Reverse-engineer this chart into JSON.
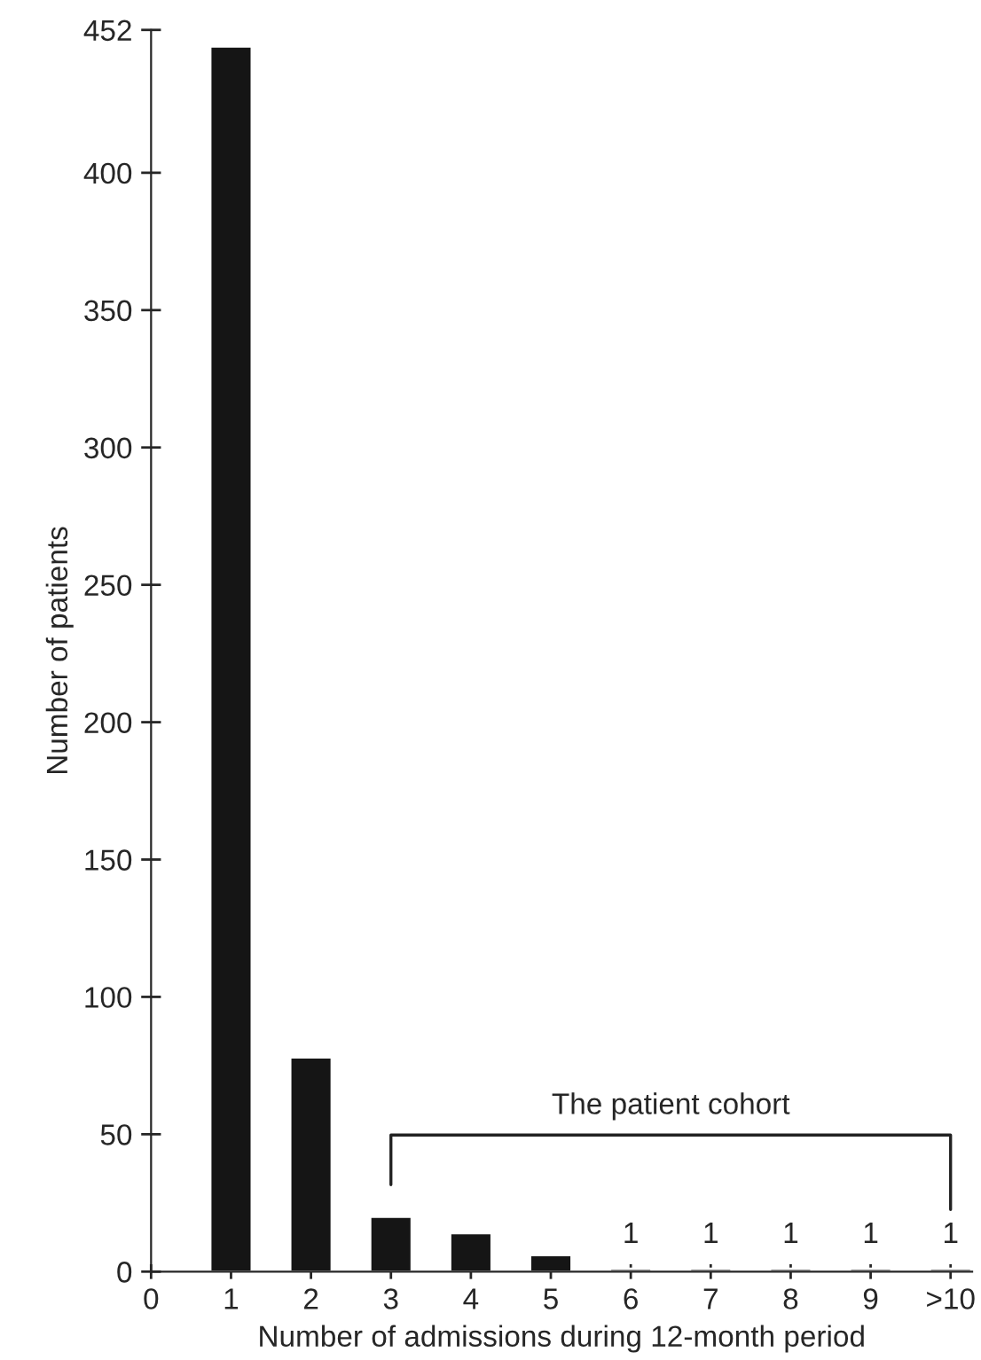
{
  "chart_data": {
    "type": "bar",
    "xlabel": "Number of admissions during 12-month period",
    "ylabel": "Number of patients",
    "x": [
      1,
      2,
      3,
      4,
      5,
      6,
      7,
      8,
      9,
      10
    ],
    "values": [
      446,
      78,
      20,
      14,
      6,
      1,
      1,
      1,
      1,
      1
    ],
    "value_labels": [
      null,
      null,
      null,
      null,
      null,
      "1",
      "1",
      "1",
      "1",
      "1"
    ],
    "color": "#151515",
    "xlim": [
      0,
      10.27
    ],
    "xticks": [
      0,
      1,
      2,
      3,
      4,
      5,
      6,
      7,
      8,
      9,
      {
        "value": 10,
        "label": ">10"
      }
    ],
    "ylim": [
      0,
      452
    ],
    "yticks": [
      0,
      50,
      100,
      150,
      200,
      250,
      300,
      350,
      400,
      452
    ],
    "annotations": [
      "The patient cohort"
    ],
    "grid": false
  }
}
